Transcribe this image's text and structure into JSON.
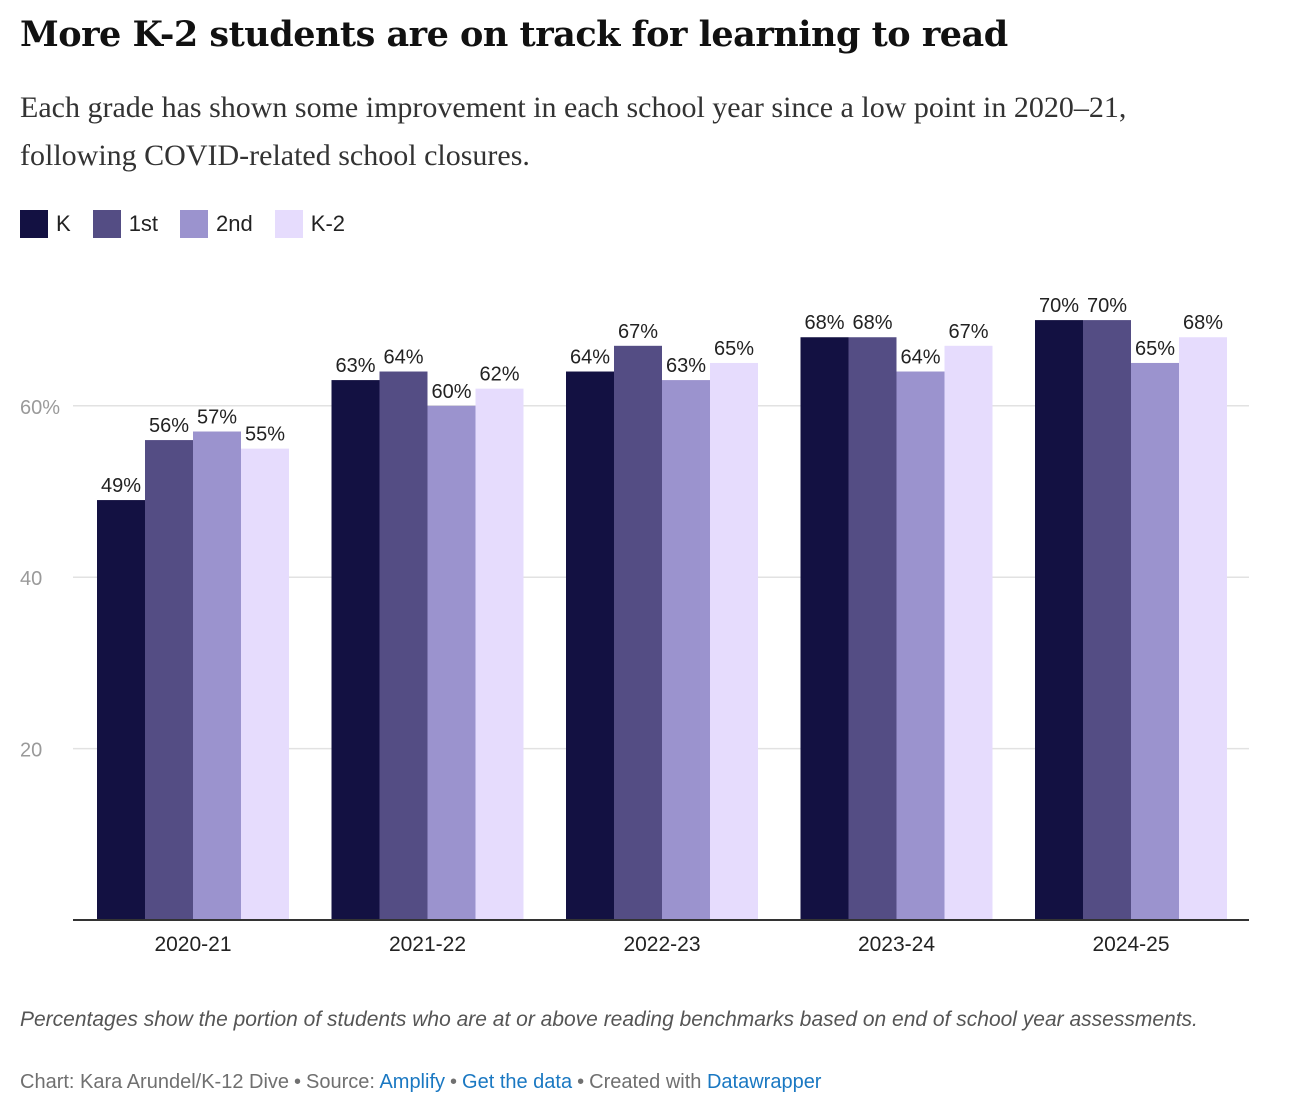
{
  "title": "More K-2 students are on track for learning to read",
  "subtitle": "Each grade has shown some improvement in each school year since a low point in 2020–21, following COVID-related school closures.",
  "legend": [
    {
      "label": "K",
      "color": "#131142"
    },
    {
      "label": "1st",
      "color": "#544d84"
    },
    {
      "label": "2nd",
      "color": "#9b93ce"
    },
    {
      "label": "K-2",
      "color": "#e6dcfd"
    }
  ],
  "chart_data": {
    "type": "bar",
    "categories": [
      "2020-21",
      "2021-22",
      "2022-23",
      "2023-24",
      "2024-25"
    ],
    "series": [
      {
        "name": "K",
        "values": [
          49,
          63,
          64,
          68,
          70
        ]
      },
      {
        "name": "1st",
        "values": [
          56,
          64,
          67,
          68,
          70
        ]
      },
      {
        "name": "2nd",
        "values": [
          57,
          60,
          63,
          64,
          65
        ]
      },
      {
        "name": "K-2",
        "values": [
          55,
          62,
          65,
          67,
          68
        ]
      }
    ],
    "ylim": [
      0,
      75
    ],
    "yticks": [
      20,
      40,
      60
    ],
    "ytick_labels": [
      "20",
      "40",
      "60%"
    ],
    "value_suffix": "%",
    "xlabel": "",
    "ylabel": "",
    "grid": true
  },
  "notes": "Percentages show the portion of students who are at or above reading benchmarks based on end of school year assessments.",
  "byline": {
    "chart_prefix": "Chart: Kara Arundel/K-12 Dive",
    "source_prefix": "Source:",
    "source_link": "Amplify",
    "data_link": "Get the data",
    "created_prefix": "Created with",
    "tool_link": "Datawrapper",
    "separator": "•"
  }
}
